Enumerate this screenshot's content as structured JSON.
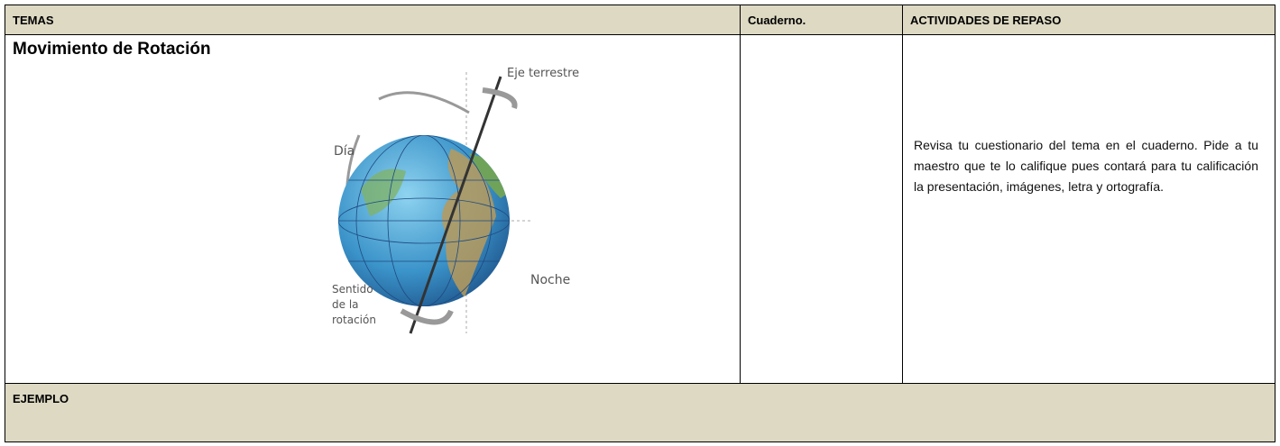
{
  "header": [
    "TEMAS",
    "Cuaderno.",
    "ACTIVIDADES DE REPASO"
  ],
  "topic": {
    "title": "Movimiento de Rotación",
    "figure": {
      "axis_label": "Eje terrestre",
      "day_label": "Día",
      "night_label": "Noche",
      "rotation_label": [
        "Sentido",
        "de la",
        "rotación"
      ]
    }
  },
  "activity": "Revisa tu cuestionario del tema en el cuaderno. Pide a tu maestro que te lo califique pues contará para tu calificación la presentación, imágenes, letra y ortografía.",
  "footer": "EJEMPLO"
}
